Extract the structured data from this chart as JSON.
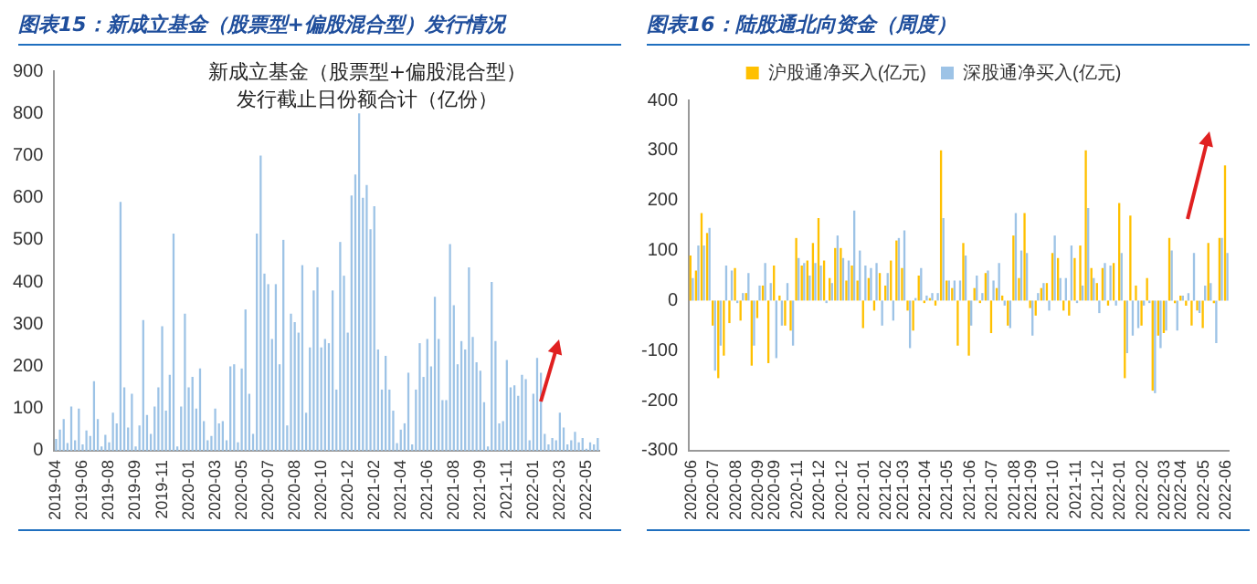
{
  "chart_data": [
    {
      "type": "bar",
      "title": "图表15：新成立基金（股票型+偏股混合型）发行情况",
      "subtitle": "新成立基金（股票型+偏股混合型）发行截止日份额合计（亿份）",
      "categories": [
        "2019-04",
        null,
        null,
        null,
        null,
        null,
        null,
        "2019-06",
        null,
        null,
        null,
        null,
        null,
        null,
        "2019-08",
        null,
        null,
        null,
        null,
        null,
        null,
        "2019-09",
        null,
        null,
        null,
        null,
        null,
        null,
        "2019-11",
        null,
        null,
        null,
        null,
        null,
        null,
        "2020-01",
        null,
        null,
        null,
        null,
        null,
        null,
        "2020-03",
        null,
        null,
        null,
        null,
        null,
        null,
        "2020-05",
        null,
        null,
        null,
        null,
        null,
        null,
        "2020-07",
        null,
        null,
        null,
        null,
        null,
        null,
        "2020-08",
        null,
        null,
        null,
        null,
        null,
        null,
        "2020-10",
        null,
        null,
        null,
        null,
        null,
        null,
        "2020-12",
        null,
        null,
        null,
        null,
        null,
        null,
        "2021-02",
        null,
        null,
        null,
        null,
        null,
        null,
        "2021-04",
        null,
        null,
        null,
        null,
        null,
        null,
        "2021-06",
        null,
        null,
        null,
        null,
        null,
        null,
        "2021-08",
        null,
        null,
        null,
        null,
        null,
        null,
        "2021-09",
        null,
        null,
        null,
        null,
        null,
        null,
        "2021-11",
        null,
        null,
        null,
        null,
        null,
        null,
        "2022-01",
        null,
        null,
        null,
        null,
        null,
        null,
        "2022-03",
        null,
        null,
        null,
        null,
        null,
        null,
        "2022-05",
        null,
        null,
        null
      ],
      "values": [
        28,
        50,
        75,
        18,
        105,
        25,
        100,
        15,
        48,
        35,
        165,
        75,
        10,
        38,
        20,
        90,
        65,
        590,
        150,
        55,
        135,
        10,
        60,
        310,
        85,
        40,
        105,
        150,
        295,
        95,
        180,
        515,
        10,
        105,
        325,
        150,
        175,
        100,
        195,
        70,
        25,
        35,
        100,
        65,
        70,
        25,
        200,
        205,
        20,
        195,
        335,
        135,
        40,
        515,
        700,
        420,
        395,
        265,
        395,
        205,
        500,
        60,
        325,
        305,
        280,
        440,
        90,
        245,
        380,
        435,
        245,
        265,
        255,
        380,
        145,
        495,
        415,
        280,
        605,
        655,
        800,
        600,
        630,
        525,
        580,
        240,
        145,
        225,
        145,
        95,
        18,
        50,
        65,
        185,
        15,
        145,
        255,
        175,
        265,
        200,
        365,
        265,
        120,
        120,
        490,
        345,
        205,
        260,
        240,
        435,
        270,
        210,
        190,
        115,
        10,
        400,
        260,
        65,
        70,
        215,
        150,
        155,
        130,
        180,
        170,
        25,
        135,
        220,
        185,
        40,
        15,
        30,
        25,
        90,
        55,
        15,
        25,
        45,
        20,
        30,
        5,
        20,
        15,
        30
      ],
      "color": "#9dc3e6",
      "ylim": [
        0,
        900
      ],
      "yticks": [
        0,
        100,
        200,
        300,
        400,
        500,
        600,
        700,
        800,
        900
      ]
    },
    {
      "type": "bar",
      "title": "图表16：陆股通北向资金（周度）",
      "categories": [
        "2020-06",
        null,
        null,
        null,
        "2020-07",
        null,
        null,
        null,
        "2020-08",
        null,
        null,
        null,
        "2020-09",
        null,
        null,
        "2020-09",
        null,
        null,
        null,
        "2020-11",
        null,
        null,
        null,
        "2020-12",
        null,
        null,
        null,
        "2020-12",
        null,
        null,
        null,
        "2021-01",
        null,
        null,
        null,
        "2021-02",
        null,
        null,
        "2021-03",
        null,
        null,
        null,
        "2021-04",
        null,
        null,
        null,
        "2021-05",
        null,
        null,
        null,
        "2021-06",
        null,
        null,
        null,
        "2021-07",
        null,
        null,
        null,
        "2021-08",
        null,
        null,
        "2021-09",
        null,
        null,
        null,
        "2021-10",
        null,
        null,
        null,
        "2021-11",
        null,
        null,
        null,
        "2021-12",
        null,
        null,
        null,
        "2022-01",
        null,
        null,
        null,
        "2022-02",
        null,
        null,
        null,
        "2022-03",
        null,
        null,
        "2022-04",
        null,
        null,
        null,
        "2022-05",
        null,
        null,
        null,
        "2022-06"
      ],
      "series": [
        {
          "name": "沪股通净买入(亿元)",
          "color": "#ffc000",
          "values": [
            90,
            60,
            175,
            135,
            -50,
            -155,
            -110,
            -45,
            65,
            -40,
            15,
            -130,
            -35,
            30,
            -125,
            70,
            10,
            -50,
            -60,
            125,
            70,
            80,
            115,
            165,
            80,
            45,
            105,
            105,
            40,
            70,
            40,
            -55,
            45,
            -20,
            55,
            30,
            80,
            120,
            65,
            -20,
            -60,
            50,
            -5,
            5,
            -10,
            300,
            40,
            25,
            -90,
            115,
            -110,
            25,
            -5,
            55,
            -65,
            25,
            10,
            -50,
            130,
            45,
            175,
            -15,
            -30,
            25,
            35,
            95,
            85,
            -20,
            -30,
            85,
            110,
            300,
            65,
            35,
            65,
            -10,
            75,
            195,
            -155,
            170,
            30,
            -50,
            45,
            -180,
            -70,
            -65,
            125,
            -5,
            10,
            -10,
            -50,
            -20,
            -55,
            115,
            -5,
            125,
            270
          ]
        },
        {
          "name": "深股通净买入(亿元)",
          "color": "#9dc3e6",
          "values": [
            45,
            110,
            110,
            145,
            -140,
            -90,
            70,
            60,
            -5,
            15,
            55,
            -90,
            30,
            75,
            35,
            -115,
            -50,
            35,
            -90,
            85,
            75,
            50,
            75,
            70,
            -5,
            35,
            130,
            85,
            80,
            180,
            100,
            70,
            65,
            75,
            -50,
            55,
            -40,
            125,
            140,
            -95,
            5,
            65,
            10,
            15,
            15,
            165,
            40,
            40,
            40,
            90,
            -50,
            50,
            15,
            60,
            40,
            75,
            -10,
            -55,
            175,
            100,
            95,
            -70,
            15,
            35,
            -20,
            130,
            45,
            45,
            110,
            -5,
            30,
            185,
            45,
            -25,
            75,
            70,
            -10,
            95,
            -105,
            -70,
            -55,
            -10,
            -5,
            -185,
            -95,
            -60,
            100,
            -60,
            10,
            15,
            95,
            -25,
            30,
            35,
            -85,
            125,
            95
          ]
        }
      ],
      "legend": "top",
      "ylim": [
        -300,
        400
      ],
      "yticks": [
        -300,
        -200,
        -100,
        0,
        100,
        200,
        300,
        400
      ]
    }
  ]
}
